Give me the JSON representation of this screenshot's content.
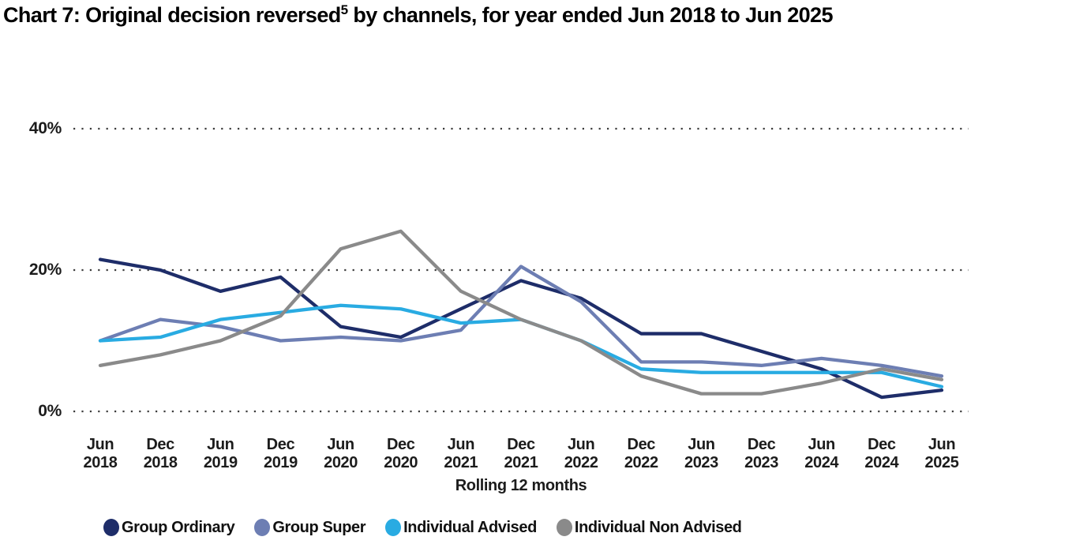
{
  "title": {
    "prefix": "Chart 7: Original decision reversed",
    "superscript": "5",
    "suffix": " by channels, for year ended Jun 2018 to Jun 2025"
  },
  "chart_data": {
    "type": "line",
    "title": "Chart 7: Original decision reversed⁵ by channels, for year ended Jun 2018 to Jun 2025",
    "xlabel": "Rolling 12 months",
    "ylabel": "",
    "ylim": [
      0,
      40
    ],
    "grid": "horizontal dotted gridlines at 0%, 20%, 40%",
    "legend_position": "bottom",
    "y_ticks": [
      {
        "value": 0,
        "label": "0%"
      },
      {
        "value": 20,
        "label": "20%"
      },
      {
        "value": 40,
        "label": "40%"
      }
    ],
    "categories": [
      "Jun 2018",
      "Dec 2018",
      "Jun 2019",
      "Dec 2019",
      "Jun 2020",
      "Dec 2020",
      "Jun 2021",
      "Dec 2021",
      "Jun 2022",
      "Dec 2022",
      "Jun 2023",
      "Dec 2023",
      "Jun 2024",
      "Dec 2024",
      "Jun 2025"
    ],
    "series": [
      {
        "name": "Group Ordinary",
        "color": "#1E2D69",
        "values": [
          21.5,
          20,
          17,
          19,
          12,
          10.5,
          14.5,
          18.5,
          16,
          11,
          11,
          8.5,
          6,
          2,
          3
        ]
      },
      {
        "name": "Group Super",
        "color": "#6D7EB3",
        "values": [
          10,
          13,
          12,
          10,
          10.5,
          10,
          11.5,
          20.5,
          15.5,
          7,
          7,
          6.5,
          7.5,
          6.5,
          5
        ]
      },
      {
        "name": "Individual Advised",
        "color": "#29ABE2",
        "values": [
          10,
          10.5,
          13,
          14,
          15,
          14.5,
          12.5,
          13,
          10,
          6,
          5.5,
          5.5,
          5.5,
          5.5,
          3.5
        ]
      },
      {
        "name": "Individual Non Advised",
        "color": "#8A8A8A",
        "values": [
          6.5,
          8,
          10,
          13.5,
          23,
          25.5,
          17,
          13,
          10,
          5,
          2.5,
          2.5,
          4,
          6,
          4.5
        ]
      }
    ]
  }
}
